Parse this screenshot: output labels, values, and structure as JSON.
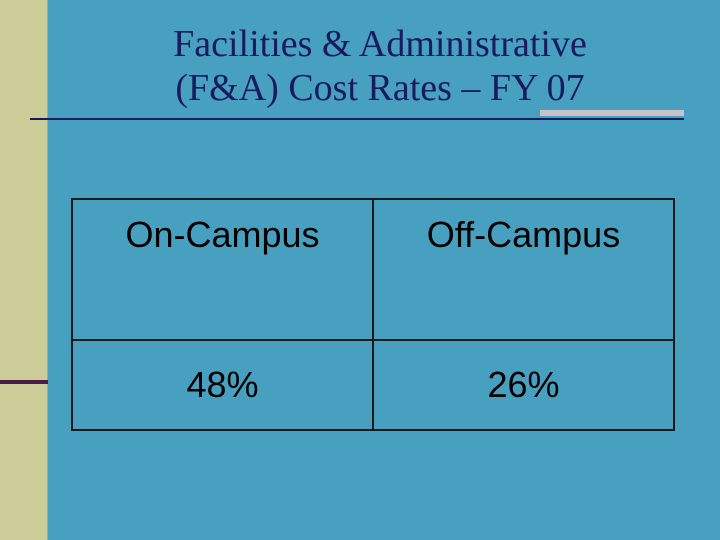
{
  "slide": {
    "title_line1": "Facilities & Administrative",
    "title_line2": "(F&A) Cost Rates – FY 07",
    "colors": {
      "background": "#47a0c0",
      "left_bar": "#cccc99",
      "left_bar_accent": "#4a1a4a",
      "title_text": "#1a1b5e",
      "rule_accent": "#c8c2c8"
    }
  },
  "rates_table": {
    "headers": [
      "On-Campus",
      "Off-Campus"
    ],
    "values": [
      "48%",
      "26%"
    ]
  }
}
